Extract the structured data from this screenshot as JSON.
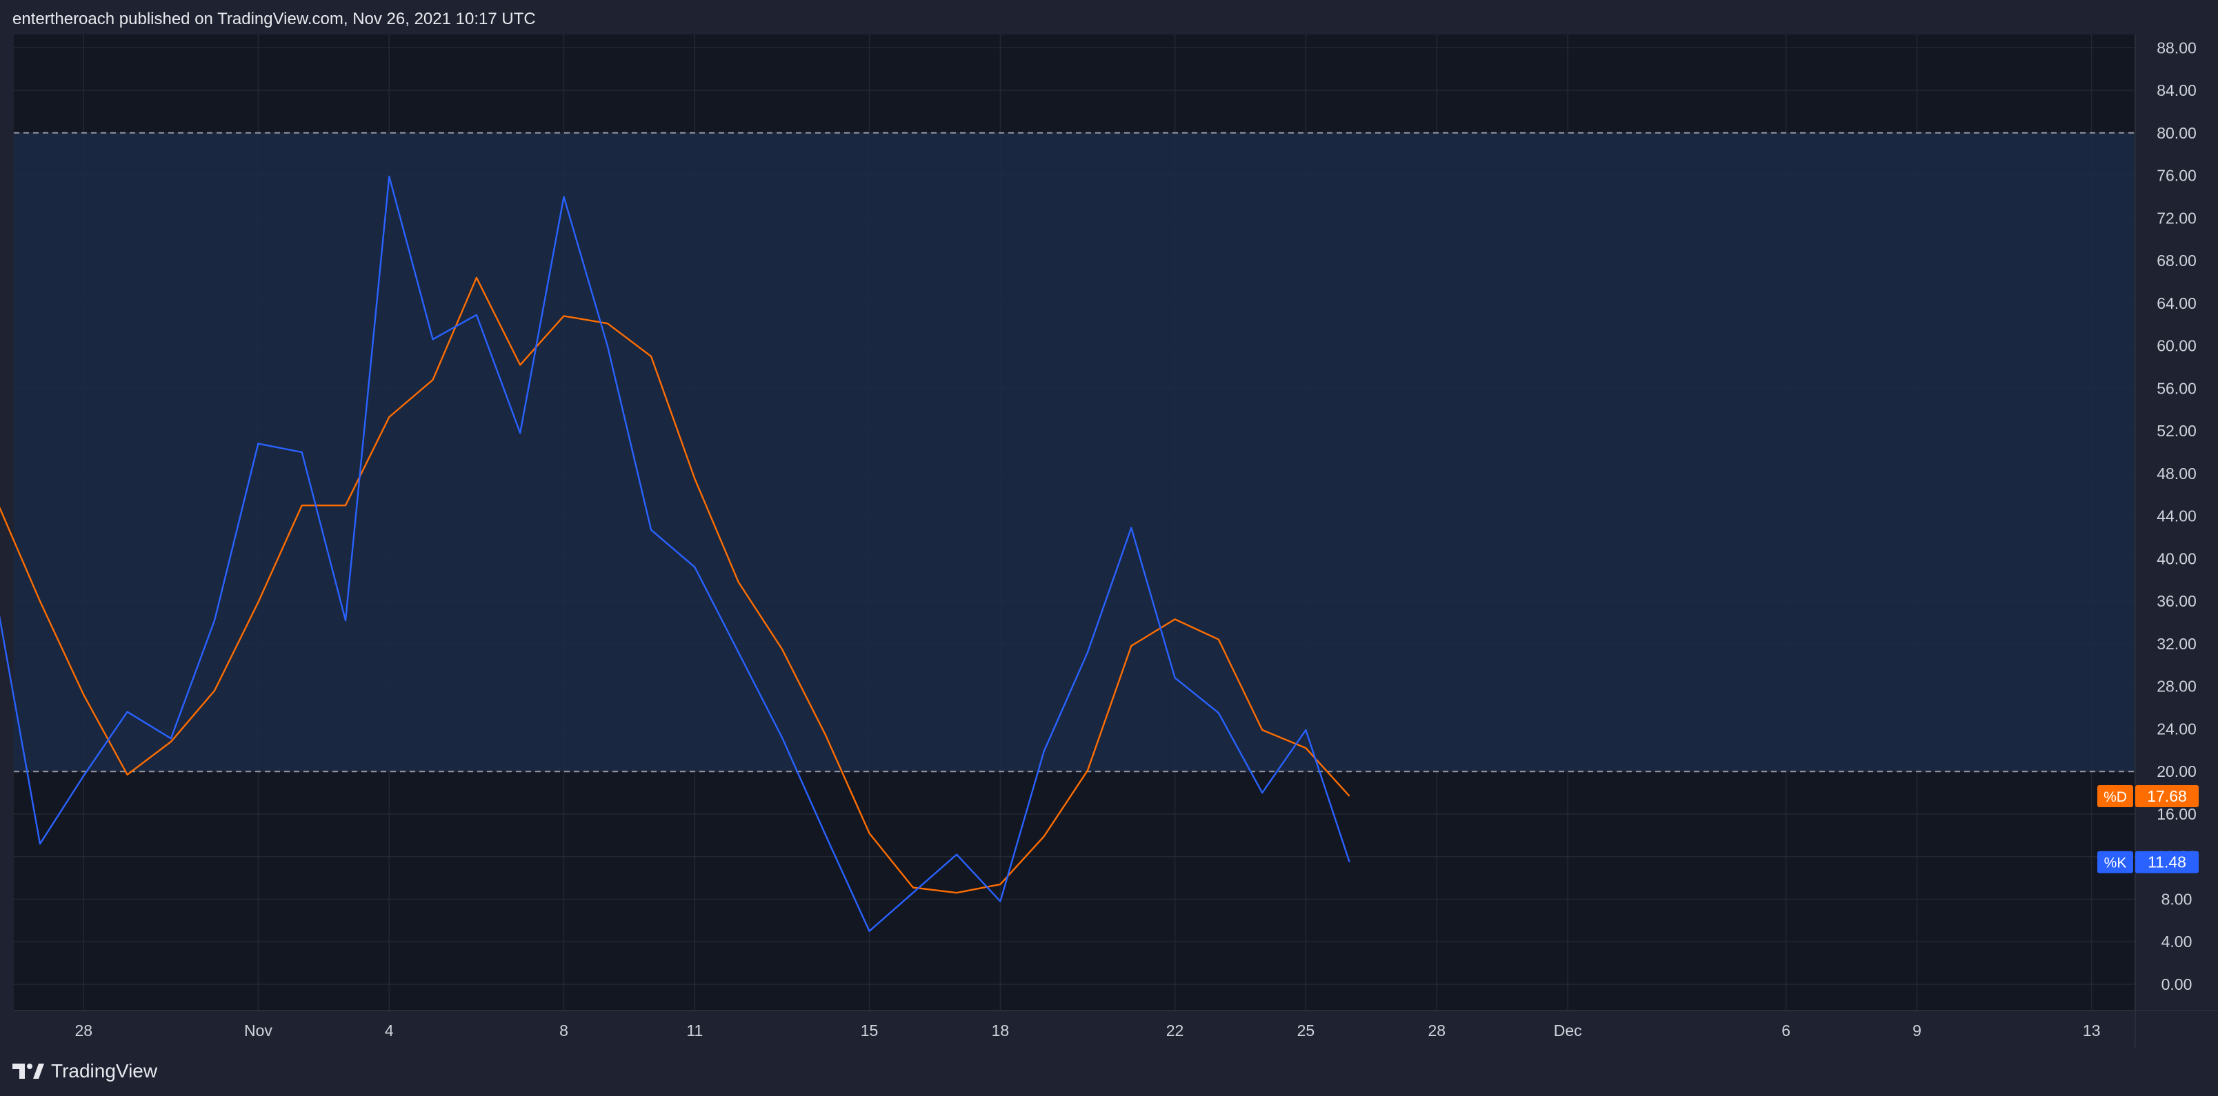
{
  "header": {
    "publish_text": "entertheroach published on TradingView.com, Nov 26, 2021 10:17 UTC"
  },
  "footer": {
    "brand_name": "TradingView"
  },
  "colors": {
    "background": "#131722",
    "frame": "#1f2331",
    "grid": "#2a2e39",
    "band_fill": "#1b2a45",
    "band_line": "#9598a1",
    "k_line": "#2962ff",
    "d_line": "#ff6d00",
    "text": "#d1d4dc"
  },
  "chart_data": {
    "type": "line",
    "title": "",
    "xlabel": "",
    "ylabel": "",
    "ylim": [
      -4,
      90
    ],
    "y_ticks": [
      "0.00",
      "4.00",
      "8.00",
      "12.00",
      "16.00",
      "20.00",
      "24.00",
      "28.00",
      "32.00",
      "36.00",
      "40.00",
      "44.00",
      "48.00",
      "52.00",
      "56.00",
      "60.00",
      "64.00",
      "68.00",
      "72.00",
      "76.00",
      "80.00",
      "84.00",
      "88.00"
    ],
    "x_tick_labels": [
      {
        "label": "28",
        "day": 28
      },
      {
        "label": "Nov",
        "day": 32
      },
      {
        "label": "4",
        "day": 35
      },
      {
        "label": "8",
        "day": 39
      },
      {
        "label": "11",
        "day": 42
      },
      {
        "label": "15",
        "day": 46
      },
      {
        "label": "18",
        "day": 49
      },
      {
        "label": "22",
        "day": 53
      },
      {
        "label": "25",
        "day": 56
      },
      {
        "label": "28",
        "day": 59
      },
      {
        "label": "Dec",
        "day": 62
      },
      {
        "label": "6",
        "day": 67
      },
      {
        "label": "9",
        "day": 70
      },
      {
        "label": "13",
        "day": 74
      }
    ],
    "x_day_range": [
      26.4,
      75.0
    ],
    "bands": {
      "upper": 80,
      "lower": 20
    },
    "x_days": [
      26,
      27,
      28,
      29,
      30,
      31,
      32,
      33,
      34,
      35,
      36,
      37,
      38,
      39,
      40,
      41,
      42,
      43,
      44,
      45,
      46,
      47,
      48,
      49,
      50,
      51,
      52,
      53,
      54,
      55,
      56,
      57
    ],
    "series": [
      {
        "name": "%K",
        "color": "#2962ff",
        "values": [
          36.2,
          13.2,
          19.6,
          25.6,
          23.1,
          34.2,
          50.8,
          50.0,
          34.2,
          75.9,
          60.6,
          62.9,
          51.8,
          74.0,
          60.0,
          42.7,
          39.2,
          31.2,
          23.2,
          14.0,
          5.0,
          8.6,
          12.2,
          7.8,
          21.9,
          31.2,
          42.9,
          28.8,
          25.5,
          18.0,
          23.9,
          11.48
        ]
      },
      {
        "name": "%D",
        "color": "#ff6d00",
        "values": [
          45.5,
          36.0,
          27.2,
          19.7,
          22.8,
          27.6,
          35.9,
          45.0,
          45.0,
          53.3,
          56.8,
          66.4,
          58.2,
          62.8,
          62.1,
          59.0,
          47.5,
          37.8,
          31.5,
          23.4,
          14.2,
          9.1,
          8.6,
          9.4,
          13.9,
          20.1,
          31.8,
          34.3,
          32.4,
          23.9,
          22.2,
          17.68
        ]
      }
    ],
    "last_value_labels": [
      {
        "series": "%D",
        "tag": "%D",
        "value": "17.68",
        "color": "#ff6d00"
      },
      {
        "series": "%K",
        "tag": "%K",
        "value": "11.48",
        "color": "#2962ff"
      }
    ]
  }
}
